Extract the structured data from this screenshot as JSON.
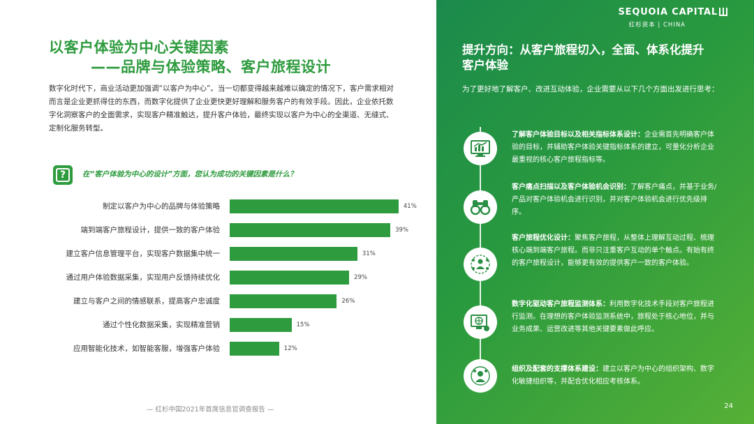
{
  "left": {
    "title_line1": "以客户体验为中心关键因素",
    "title_line2": "——品牌与体验策略、客户旅程设计",
    "intro": "数字化时代下，商业活动更加强调“以客户为中心”。当一切都变得越来越难以确定的情况下，客户需求相对而言是企业更抓得住的东西，而数字化提供了企业更快更好理解和服务客户的有效手段。因此，企业依托数字化洞察客户的全面需求，实现客户精准触达，提升客户体验，最终实现以客户为中心的全渠道、无缝式、定制化服务转型。",
    "question_icon": "question-icon",
    "question": "在“客户体验为中心的设计”方面，您认为成功的关键因素是什么？"
  },
  "chart_data": {
    "type": "bar",
    "orientation": "horizontal",
    "categories": [
      "制定以客户为中心的品牌与体验策略",
      "端到端客户旅程设计，提供一致的客户体验",
      "建立客户信息管理平台，实现客户数据集中统一",
      "通过用户体验数据采集，实现用户反馈持续优化",
      "建立与客户之间的情感联系，提高客户忠诚度",
      "通过个性化数据采集，实现精准营销",
      "应用智能化技术，如智能客服，增强客户体验"
    ],
    "values": [
      41,
      39,
      31,
      29,
      26,
      15,
      12
    ],
    "value_labels": [
      "41%",
      "39%",
      "31%",
      "29%",
      "26%",
      "15%",
      "12%"
    ],
    "bar_color": "#2e9b3e"
  },
  "footer": "— 红杉中国2021年首席信息官调查报告 —",
  "right": {
    "logo_main": "SEQUOIA CAPITAL",
    "logo_sub": "红杉资本 | CHINA",
    "title": "提升方向：从客户旅程切入，全面、体系化提升客户体验",
    "intro": "为了更好地了解客户、改进互动体验，企业需要从以下几个方面出发进行思考：",
    "items": [
      {
        "icon": "chart-monitor-icon",
        "heading": "了解客户体验目标以及相关指标体系设计：",
        "body": "企业需首先明确客户体验的目标，并辅助客户体验关键指标体系的建立，可量化分析企业最重视的核心客户旅程指标等。"
      },
      {
        "icon": "binoculars-icon",
        "heading": "客户痛点扫描以及客户体验机会识别：",
        "body": "了解客户痛点，并基于业务/产品对客户体验机会进行识别，并对客户体验机会进行优先级排序。"
      },
      {
        "icon": "network-people-icon",
        "heading": "客户旅程优化设计：",
        "body": "聚焦客户旅程，从整体上理解互动过程、梳理核心端到端客户旅程。而非只注重客户互动的单个触点。有始有终的客户旅程设计，能够更有效的提供客户一致的客户体验。"
      },
      {
        "icon": "globe-monitor-icon",
        "heading": "数字化驱动客户旅程监测体系：",
        "body": "利用数字化技术手段对客户旅程进行监测。在理想的客户体验监测系统中，旅程处于核心地位，并与业务成果、运营改进等其他关键要素做此呼应。"
      },
      {
        "icon": "organization-icon",
        "heading": "组织及配套的支撑体系建设：",
        "body": "建立以客户为中心的组织架构、数字化敏捷组织等，并配合优化相应考核体系。"
      }
    ],
    "page_number": "24"
  }
}
